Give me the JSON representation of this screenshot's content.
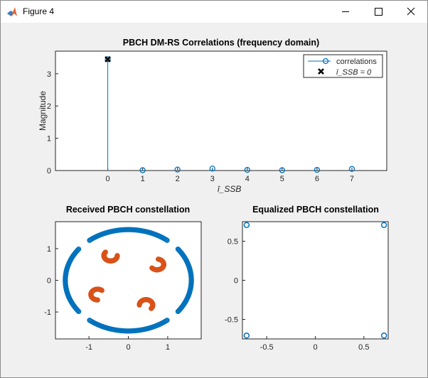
{
  "window": {
    "title": "Figure 4",
    "icons": {
      "app": "matlab-logo-icon",
      "minimize": "minimize-icon",
      "maximize": "maximize-icon",
      "close": "close-icon"
    }
  },
  "colors": {
    "series1": "#0072BD",
    "series2": "#D95319",
    "axes": "#262626",
    "background": "#f0f0f0"
  },
  "chart_data": [
    {
      "type": "scatter",
      "title": "PBCH DM-RS Correlations (frequency domain)",
      "xlabel": "ī_SSB",
      "ylabel": "Magnitude",
      "xlim": [
        -1.5,
        8.0
      ],
      "ylim": [
        0,
        3.7
      ],
      "xticks": [
        "0",
        "1",
        "2",
        "3",
        "4",
        "5",
        "6",
        "7"
      ],
      "yticks": [
        "0",
        "1",
        "2",
        "3"
      ],
      "legend": {
        "position": "top-right",
        "entries": [
          "correlations",
          "ī_SSB = 0"
        ]
      },
      "series": [
        {
          "name": "correlations",
          "style": "stem",
          "x": [
            0,
            1,
            2,
            3,
            4,
            5,
            6,
            7
          ],
          "y": [
            3.45,
            0.01,
            0.03,
            0.06,
            0.02,
            0.01,
            0.02,
            0.05
          ]
        },
        {
          "name": "ī_SSB = 0",
          "style": "x-marker",
          "x": [
            0
          ],
          "y": [
            3.45
          ]
        }
      ]
    },
    {
      "type": "scatter",
      "title": "Received PBCH constellation",
      "xlim": [
        -1.85,
        1.85
      ],
      "ylim": [
        -1.85,
        1.85
      ],
      "xticks": [
        "-1",
        "0",
        "1"
      ],
      "yticks": [
        "-1",
        "0",
        "1"
      ],
      "series": [
        {
          "clusters": [
            {
              "r": 1.6,
              "a": 90,
              "spread": 38
            },
            {
              "r": 1.6,
              "a": 180,
              "spread": 38
            },
            {
              "r": 1.6,
              "a": 270,
              "spread": 38
            },
            {
              "r": 1.6,
              "a": 0,
              "spread": 38
            }
          ]
        },
        {
          "clusters": [
            {
              "cx": -0.45,
              "cy": 0.78,
              "r": 0.17,
              "a0": 140,
              "a1": 360
            },
            {
              "cx": 0.73,
              "cy": 0.5,
              "r": 0.17,
              "a0": 220,
              "a1": 440
            },
            {
              "cx": -0.78,
              "cy": -0.45,
              "r": 0.17,
              "a0": 50,
              "a1": 270
            },
            {
              "cx": 0.45,
              "cy": -0.78,
              "r": 0.17,
              "a0": -40,
              "a1": 180
            }
          ]
        }
      ]
    },
    {
      "type": "scatter",
      "title": "Equalized PBCH constellation",
      "xlim": [
        -0.75,
        0.75
      ],
      "ylim": [
        -0.75,
        0.75
      ],
      "xticks": [
        "-0.5",
        "0",
        "0.5"
      ],
      "yticks": [
        "-0.5",
        "0",
        "0.5"
      ],
      "series": [
        {
          "x": [
            -0.707,
            0.707,
            -0.707,
            0.707
          ],
          "y": [
            0.707,
            0.707,
            -0.707,
            -0.707
          ]
        }
      ]
    }
  ]
}
